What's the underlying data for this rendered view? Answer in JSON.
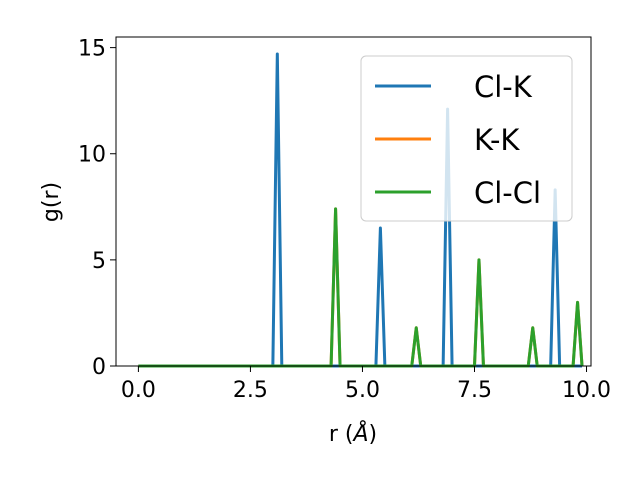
{
  "chart_data": {
    "type": "line",
    "xlabel": "r (",
    "xlabel_unit": "Å",
    "xlabel_close": ")",
    "ylabel": "g(r)",
    "xlim": [
      -0.5,
      10.1
    ],
    "ylim": [
      0,
      15.5
    ],
    "xticks": [
      0,
      2.5,
      5,
      7.5,
      10
    ],
    "xtick_labels": [
      "0.0",
      "2.5",
      "5.0",
      "7.5",
      "10.0"
    ],
    "yticks": [
      0,
      5,
      10,
      15
    ],
    "ytick_labels": [
      "0",
      "5",
      "10",
      "15"
    ],
    "grid": false,
    "legend_position": "top-right",
    "series": [
      {
        "name": "Cl-K",
        "color": "#1f77b4",
        "x": [
          0.0,
          3.0,
          3.1,
          3.2,
          5.3,
          5.4,
          5.5,
          6.8,
          6.9,
          7.0,
          9.2,
          9.3,
          9.4,
          9.9
        ],
        "y": [
          0,
          0,
          14.7,
          0,
          0,
          6.5,
          0,
          0,
          12.1,
          0,
          0,
          8.3,
          0,
          0
        ]
      },
      {
        "name": "K-K",
        "color": "#ff7f0e",
        "x": [
          0.0,
          4.3,
          4.4,
          4.5,
          6.1,
          6.2,
          6.3,
          7.5,
          7.6,
          7.7,
          8.7,
          8.8,
          8.9,
          9.7,
          9.8,
          9.9
        ],
        "y": [
          0,
          0,
          7.4,
          0,
          0,
          1.8,
          0,
          0,
          5.0,
          0,
          0,
          1.8,
          0,
          0,
          3.0,
          0
        ]
      },
      {
        "name": "Cl-Cl",
        "color": "#2ca02c",
        "x": [
          0.0,
          4.3,
          4.4,
          4.5,
          6.1,
          6.2,
          6.3,
          7.5,
          7.6,
          7.7,
          8.7,
          8.8,
          8.9,
          9.7,
          9.8,
          9.9
        ],
        "y": [
          0,
          0,
          7.4,
          0,
          0,
          1.8,
          0,
          0,
          5.0,
          0,
          0,
          1.8,
          0,
          0,
          3.0,
          0
        ]
      }
    ]
  }
}
